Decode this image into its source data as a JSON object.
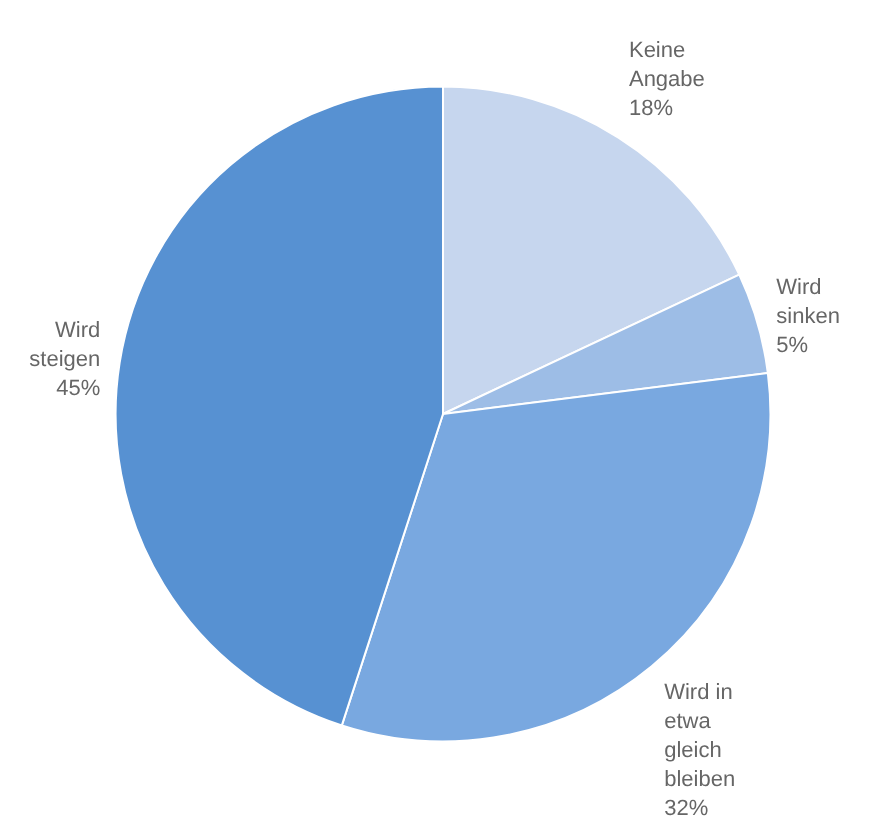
{
  "chart_data": {
    "type": "pie",
    "categories": [
      "Keine Angabe",
      "Wird sinken",
      "Wird in etwa gleich bleiben",
      "Wird steigen"
    ],
    "values": [
      18,
      5,
      32,
      45
    ],
    "value_labels": [
      "18%",
      "5%",
      "32%",
      "45%"
    ],
    "colors": [
      "#c6d6ee",
      "#9dbde6",
      "#79a8e0",
      "#5791d2"
    ],
    "legend": false
  }
}
